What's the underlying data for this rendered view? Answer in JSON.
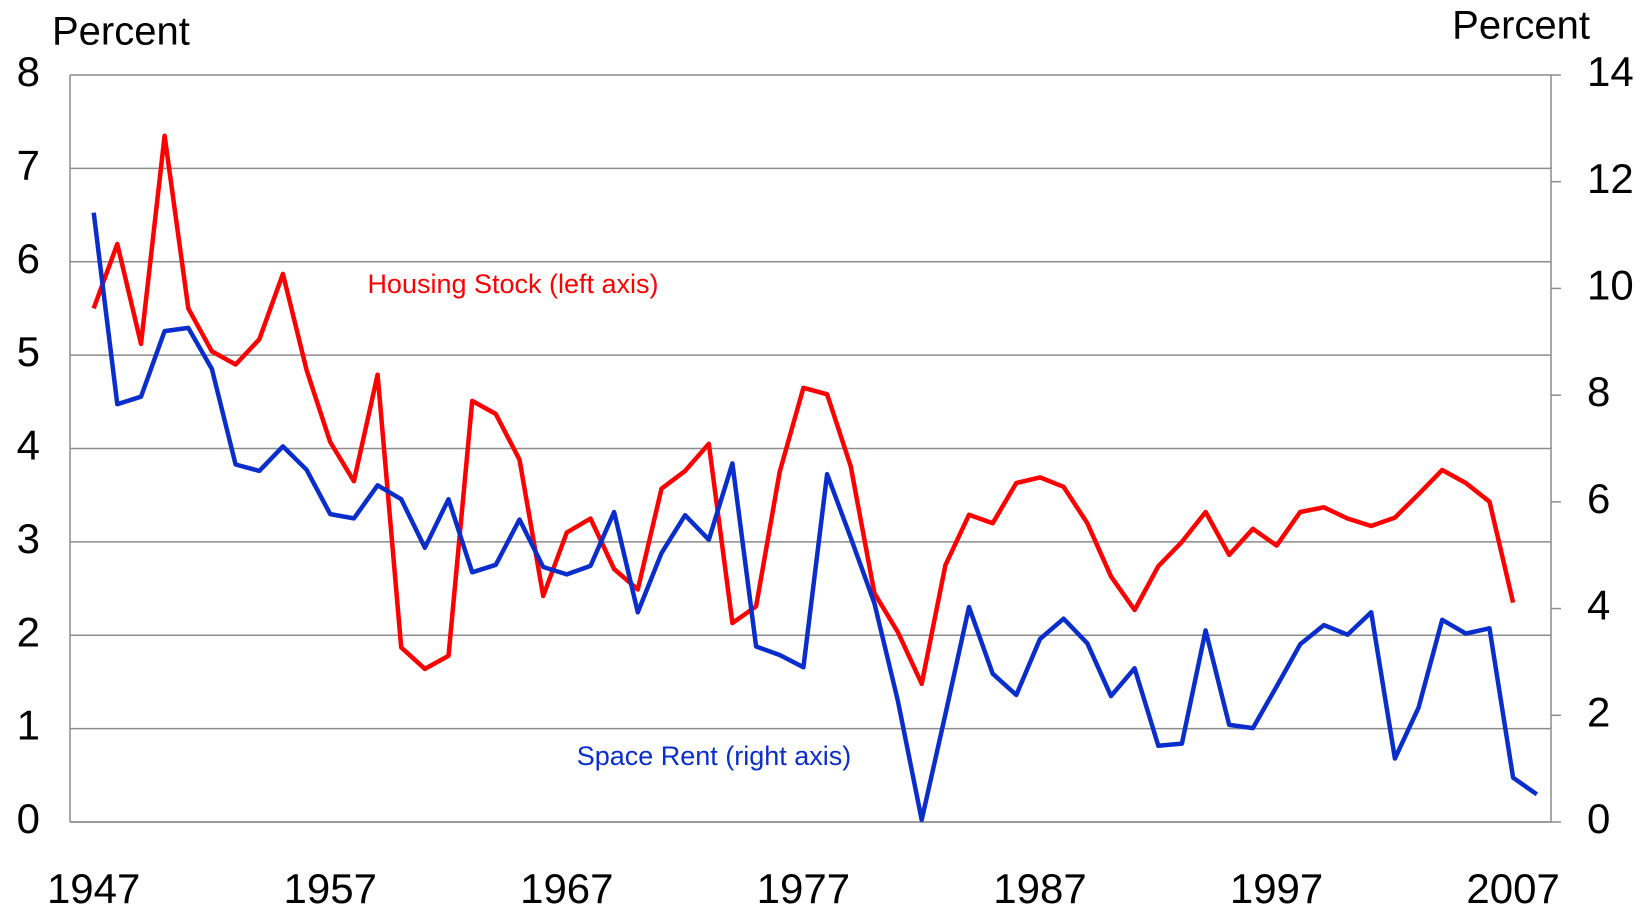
{
  "chart_data": {
    "type": "line",
    "y_label": "Percent",
    "y2_label": "Percent",
    "annotations": [
      "Housing Stock (left axis)",
      "Space Rent (right axis)"
    ],
    "x": [
      1947,
      1948,
      1949,
      1950,
      1951,
      1952,
      1953,
      1954,
      1955,
      1956,
      1957,
      1958,
      1959,
      1960,
      1961,
      1962,
      1963,
      1964,
      1965,
      1966,
      1967,
      1968,
      1969,
      1970,
      1971,
      1972,
      1973,
      1974,
      1975,
      1976,
      1977,
      1978,
      1979,
      1980,
      1981,
      1982,
      1983,
      1984,
      1985,
      1986,
      1987,
      1988,
      1989,
      1990,
      1991,
      1992,
      1993,
      1994,
      1995,
      1996,
      1997,
      1998,
      1999,
      2000,
      2001,
      2002,
      2003,
      2004,
      2005,
      2006,
      2007,
      2008
    ],
    "series": [
      {
        "name": "Housing Stock",
        "color": "#ff0000",
        "axis": "y",
        "values": [
          5.5,
          6.19,
          5.12,
          7.35,
          5.5,
          5.04,
          4.9,
          5.17,
          5.87,
          4.84,
          4.07,
          3.65,
          4.79,
          1.87,
          1.64,
          1.78,
          4.51,
          4.37,
          3.88,
          2.42,
          3.1,
          3.25,
          2.71,
          2.49,
          3.57,
          3.76,
          4.05,
          2.13,
          2.31,
          3.75,
          4.65,
          4.58,
          3.81,
          2.45,
          2.03,
          1.48,
          2.75,
          3.29,
          3.2,
          3.63,
          3.69,
          3.59,
          3.2,
          2.63,
          2.27,
          2.74,
          3.0,
          3.32,
          2.86,
          3.14,
          2.96,
          3.32,
          3.37,
          3.25,
          3.17,
          3.26,
          3.51,
          3.77,
          3.63,
          3.43,
          2.35,
          null
        ]
      },
      {
        "name": "Space Rent",
        "color": "#0a2ecc",
        "axis": "y2",
        "values": [
          11.42,
          7.83,
          7.97,
          9.2,
          9.26,
          8.49,
          6.7,
          6.58,
          7.04,
          6.6,
          5.77,
          5.69,
          6.31,
          6.05,
          5.14,
          6.05,
          4.68,
          4.82,
          5.67,
          4.78,
          4.64,
          4.8,
          5.81,
          3.93,
          5.04,
          5.75,
          5.29,
          6.72,
          3.29,
          3.13,
          2.9,
          6.52,
          5.33,
          4.1,
          2.26,
          0.04,
          2.02,
          4.03,
          2.78,
          2.38,
          3.43,
          3.81,
          3.35,
          2.36,
          2.88,
          1.43,
          1.47,
          3.59,
          1.82,
          1.76,
          2.54,
          3.33,
          3.69,
          3.51,
          3.93,
          1.19,
          2.14,
          3.79,
          3.53,
          3.63,
          0.83,
          0.52
        ]
      }
    ],
    "xlim": [
      1946,
      2008.6
    ],
    "xticks": [
      1947,
      1957,
      1967,
      1977,
      1987,
      1997,
      2007
    ],
    "ylim": [
      0,
      8
    ],
    "yticks": [
      0,
      1,
      2,
      3,
      4,
      5,
      6,
      7,
      8
    ],
    "y2lim": [
      0,
      14
    ],
    "y2ticks": [
      0,
      2,
      4,
      6,
      8,
      10,
      12,
      14
    ],
    "grid": true
  }
}
